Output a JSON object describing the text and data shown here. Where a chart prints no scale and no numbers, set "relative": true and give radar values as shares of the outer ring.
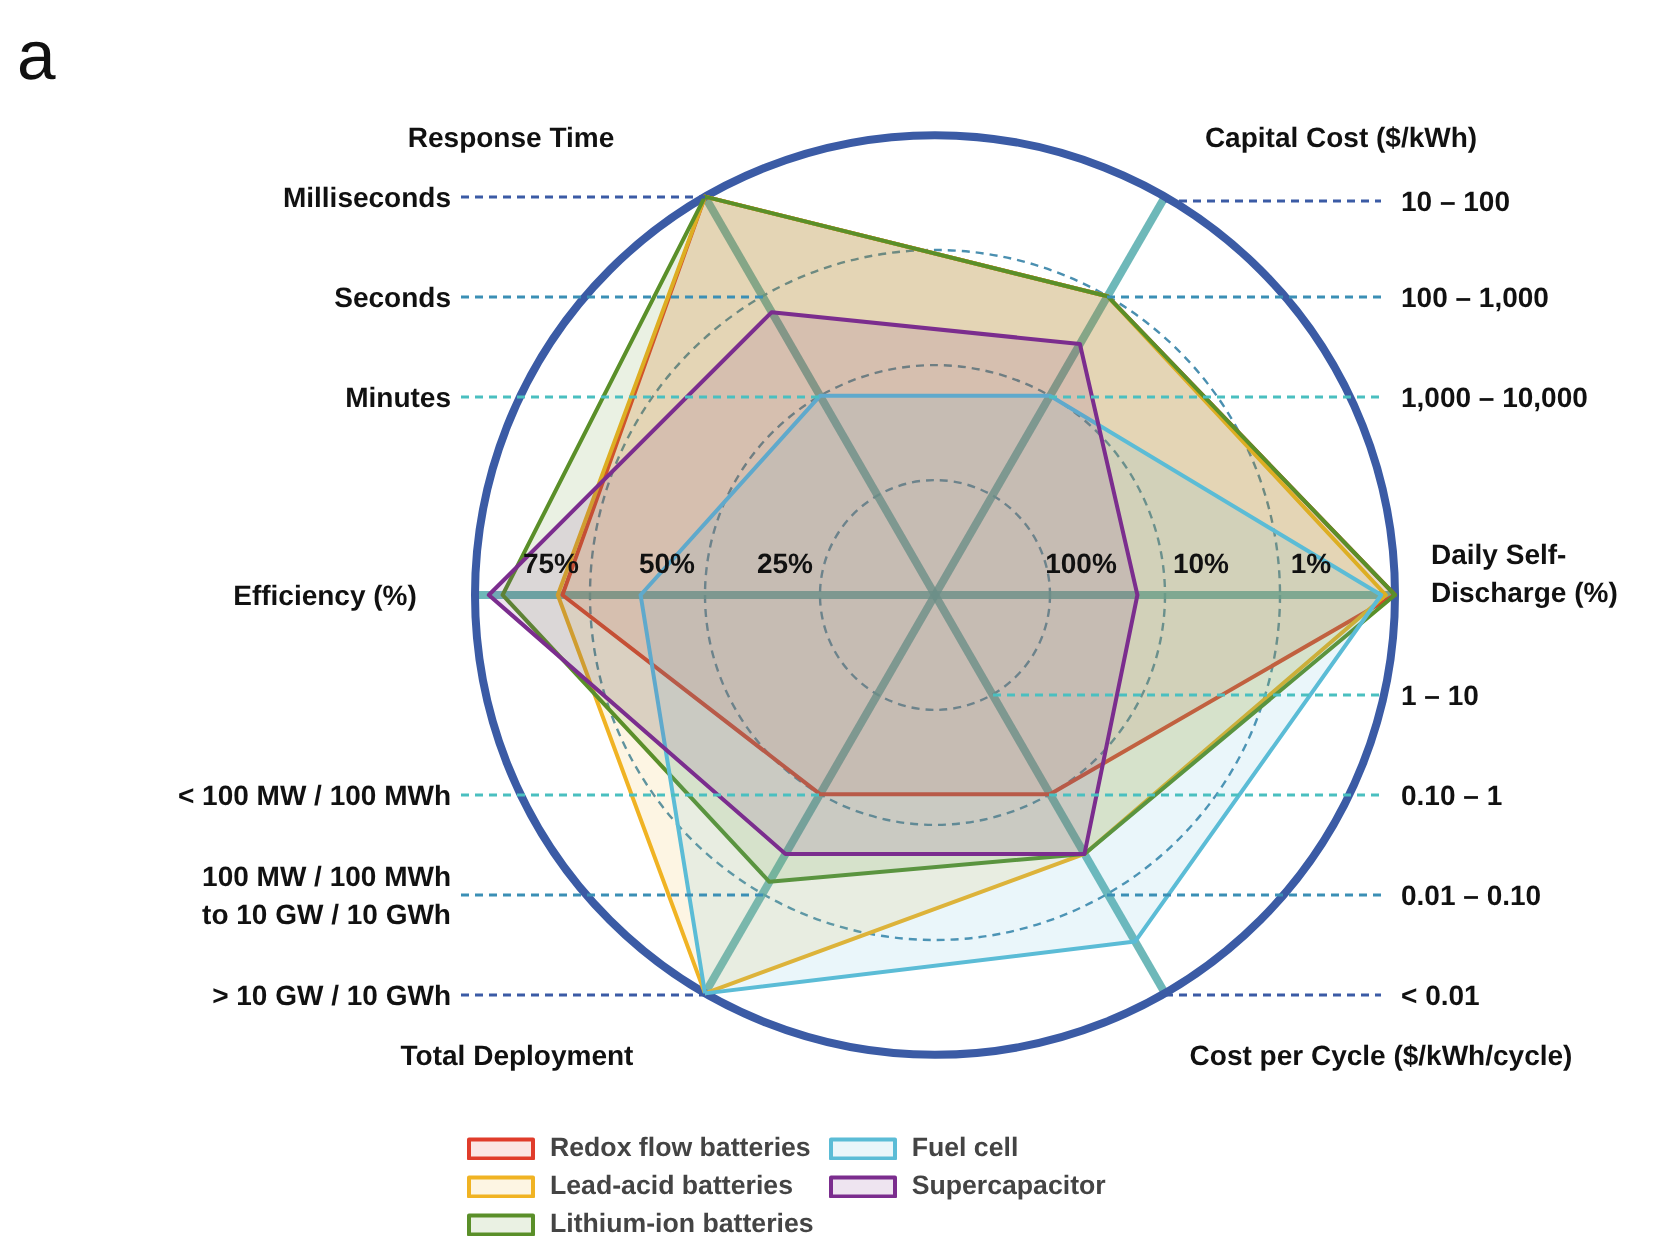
{
  "chart_data": {
    "type": "radar",
    "title": "a",
    "relative": true,
    "categories": [
      "Capital Cost ($/kWh)",
      "Daily Self-\nDischarge (%)",
      "Cost per Cycle ($/kWh/cycle)",
      "Total Deployment",
      "Efficiency (%)",
      "Response Time"
    ],
    "series": [
      {
        "name": "Redox flow batteries",
        "color": "#e03c2b",
        "values": [
          0.75,
          1,
          0.5,
          0.5,
          0.81,
          1
        ]
      },
      {
        "name": "Lead-acid batteries",
        "color": "#f0b323",
        "values": [
          0.75,
          0.98,
          0.65,
          1,
          0.82,
          1
        ]
      },
      {
        "name": "Lithium-ion batteries",
        "color": "#5a8f29",
        "values": [
          0.75,
          1,
          0.65,
          0.72,
          0.94,
          1
        ]
      },
      {
        "name": "Fuel cell",
        "color": "#5bbcd6",
        "values": [
          0.5,
          0.97,
          0.87,
          1,
          0.64,
          0.5
        ]
      },
      {
        "name": "Supercapacitor",
        "color": "#7b2d8e",
        "values": [
          0.63,
          0.44,
          0.65,
          0.65,
          0.97,
          0.71
        ]
      }
    ],
    "annotations": [
      "Milliseconds",
      "Seconds",
      "Minutes",
      "10 – 100",
      "100 – 1,000",
      "1,000 – 10,000",
      "75%",
      "50%",
      "25%",
      "100%",
      "10%",
      "1%",
      "1 – 10",
      "0.10 – 1",
      "0.01 – 0.10",
      "< 0.01",
      "< 100 MW / 100 MWh",
      "100 MW / 100 MWh\nto 10 GW / 10 GWh",
      "> 10 GW / 10 GWh"
    ],
    "legend": "bottom",
    "marker": "none",
    "line_style": "solid",
    "grid": true
  }
}
